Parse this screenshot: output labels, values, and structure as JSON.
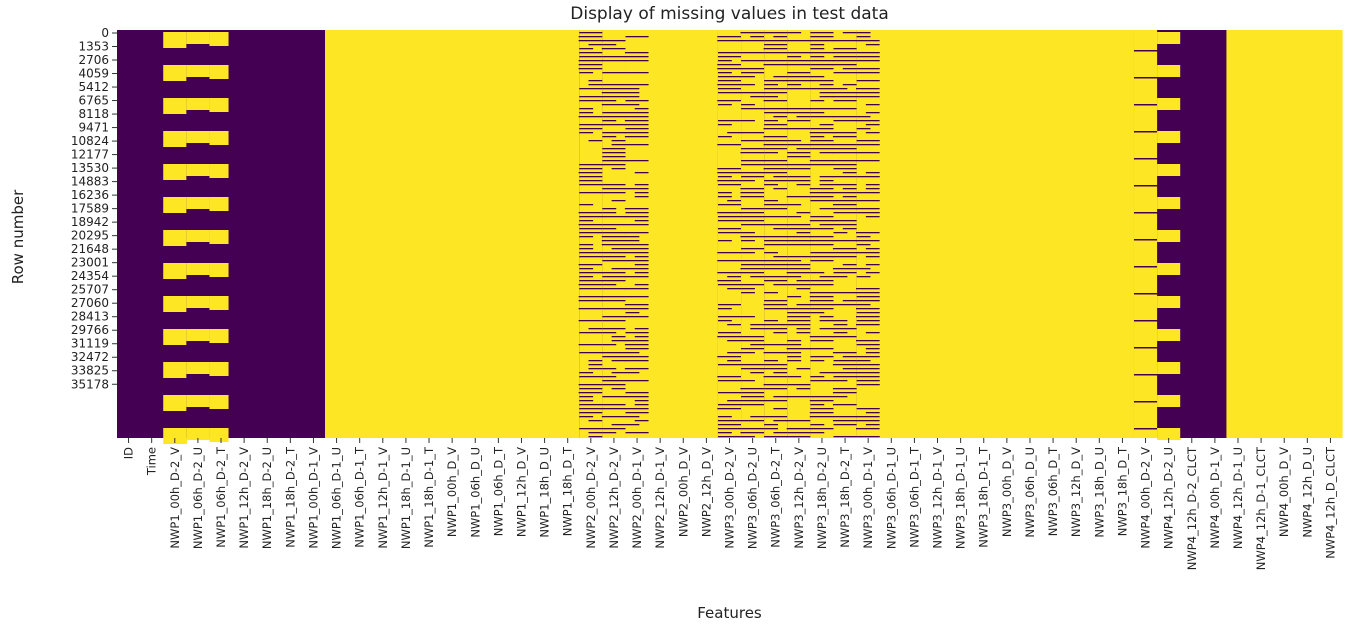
{
  "chart_data": {
    "type": "heatmap",
    "title": "Display of missing values in test data",
    "xlabel": "Features",
    "ylabel": "Row number",
    "colors": {
      "missing": "#fde725",
      "present": "#440154"
    },
    "value_meaning": {
      "1": "missing",
      "0": "present"
    },
    "y_tick_labels": [
      "0",
      "1353",
      "2706",
      "4059",
      "5412",
      "6765",
      "8118",
      "9471",
      "10824",
      "12177",
      "13530",
      "14883",
      "16236",
      "17589",
      "18942",
      "20295",
      "21648",
      "23001",
      "24354",
      "25707",
      "27060",
      "28413",
      "29766",
      "31119",
      "32472",
      "33825",
      "35178"
    ],
    "x_tick_labels": [
      "ID",
      "Time",
      "NWP1_00h_D-2_V",
      "NWP1_06h_D-2_U",
      "NWP1_06h_D-2_T",
      "NWP1_12h_D-2_V",
      "NWP1_18h_D-2_U",
      "NWP1_18h_D-2_T",
      "NWP1_00h_D-1_V",
      "NWP1_06h_D-1_U",
      "NWP1_06h_D-1_T",
      "NWP1_12h_D-1_V",
      "NWP1_18h_D-1_U",
      "NWP1_18h_D-1_T",
      "NWP1_00h_D_V",
      "NWP1_06h_D_U",
      "NWP1_06h_D_T",
      "NWP1_12h_D_V",
      "NWP1_18h_D_U",
      "NWP1_18h_D_T",
      "NWP2_00h_D-2_V",
      "NWP2_12h_D-2_V",
      "NWP2_00h_D-1_V",
      "NWP2_12h_D-1_V",
      "NWP2_00h_D_V",
      "NWP2_12h_D_V",
      "NWP3_00h_D-2_V",
      "NWP3_06h_D-2_U",
      "NWP3_06h_D-2_T",
      "NWP3_12h_D-2_V",
      "NWP3_18h_D-2_U",
      "NWP3_18h_D-2_T",
      "NWP3_00h_D-1_V",
      "NWP3_06h_D-1_U",
      "NWP3_06h_D-1_T",
      "NWP3_12h_D-1_V",
      "NWP3_18h_D-1_U",
      "NWP3_18h_D-1_T",
      "NWP3_00h_D_V",
      "NWP3_06h_D_U",
      "NWP3_06h_D_T",
      "NWP3_12h_D_V",
      "NWP3_18h_D_U",
      "NWP3_18h_D_T",
      "NWP4_00h_D-2_V",
      "NWP4_12h_D-2_U",
      "NWP4_12h_D-2_CLCT",
      "NWP4_00h_D-1_V",
      "NWP4_12h_D-1_U",
      "NWP4_12h_D-1_CLCT",
      "NWP4_00h_D_V",
      "NWP4_12h_D_U",
      "NWP4_12h_D_CLCT"
    ],
    "columns": [
      {
        "name": "ID",
        "pattern": "present"
      },
      {
        "name": "Time",
        "pattern": "present"
      },
      {
        "name": "NWP1_00h_D-2_V",
        "pattern": "periodic_blocks"
      },
      {
        "name": "NWP1_06h_D-2_U",
        "pattern": "periodic_blocks"
      },
      {
        "name": "NWP1_06h_D-2_T",
        "pattern": "periodic_blocks"
      },
      {
        "name": "NWP1_12h_D-2_V",
        "pattern": "present"
      },
      {
        "name": "NWP1_18h_D-2_U",
        "pattern": "present"
      },
      {
        "name": "NWP1_18h_D-2_T",
        "pattern": "present"
      },
      {
        "name": "NWP1_00h_D-1_V",
        "pattern": "present"
      },
      {
        "name": "NWP1_06h_D-1_U",
        "pattern": "missing"
      },
      {
        "name": "NWP1_06h_D-1_T",
        "pattern": "missing"
      },
      {
        "name": "NWP1_12h_D-1_V",
        "pattern": "missing"
      },
      {
        "name": "NWP1_18h_D-1_U",
        "pattern": "missing"
      },
      {
        "name": "NWP1_18h_D-1_T",
        "pattern": "missing"
      },
      {
        "name": "NWP1_00h_D_V",
        "pattern": "missing"
      },
      {
        "name": "NWP1_06h_D_U",
        "pattern": "missing"
      },
      {
        "name": "NWP1_06h_D_T",
        "pattern": "missing"
      },
      {
        "name": "NWP1_12h_D_V",
        "pattern": "missing"
      },
      {
        "name": "NWP1_18h_D_U",
        "pattern": "missing"
      },
      {
        "name": "NWP1_18h_D_T",
        "pattern": "missing"
      },
      {
        "name": "NWP2_00h_D-2_V",
        "pattern": "striped"
      },
      {
        "name": "NWP2_12h_D-2_V",
        "pattern": "striped"
      },
      {
        "name": "NWP2_00h_D-1_V",
        "pattern": "striped"
      },
      {
        "name": "NWP2_12h_D-1_V",
        "pattern": "missing"
      },
      {
        "name": "NWP2_00h_D_V",
        "pattern": "missing"
      },
      {
        "name": "NWP2_12h_D_V",
        "pattern": "missing"
      },
      {
        "name": "NWP3_00h_D-2_V",
        "pattern": "striped"
      },
      {
        "name": "NWP3_06h_D-2_U",
        "pattern": "striped"
      },
      {
        "name": "NWP3_06h_D-2_T",
        "pattern": "striped"
      },
      {
        "name": "NWP3_12h_D-2_V",
        "pattern": "striped"
      },
      {
        "name": "NWP3_18h_D-2_U",
        "pattern": "striped"
      },
      {
        "name": "NWP3_18h_D-2_T",
        "pattern": "striped"
      },
      {
        "name": "NWP3_00h_D-1_V",
        "pattern": "striped"
      },
      {
        "name": "NWP3_06h_D-1_U",
        "pattern": "missing"
      },
      {
        "name": "NWP3_06h_D-1_T",
        "pattern": "missing"
      },
      {
        "name": "NWP3_12h_D-1_V",
        "pattern": "missing"
      },
      {
        "name": "NWP3_18h_D-1_U",
        "pattern": "missing"
      },
      {
        "name": "NWP3_18h_D-1_T",
        "pattern": "missing"
      },
      {
        "name": "NWP3_00h_D_V",
        "pattern": "missing"
      },
      {
        "name": "NWP3_06h_D_U",
        "pattern": "missing"
      },
      {
        "name": "NWP3_06h_D_T",
        "pattern": "missing"
      },
      {
        "name": "NWP3_12h_D_V",
        "pattern": "missing"
      },
      {
        "name": "NWP3_18h_D_U",
        "pattern": "missing"
      },
      {
        "name": "NWP3_18h_D_T",
        "pattern": "missing"
      },
      {
        "name": "NWP4_00h_D-2_V",
        "pattern": "sparse_lines"
      },
      {
        "name": "NWP4_12h_D-2_U",
        "pattern": "periodic_blocks"
      },
      {
        "name": "NWP4_12h_D-2_CLCT",
        "pattern": "present"
      },
      {
        "name": "NWP4_00h_D-1_V",
        "pattern": "present"
      },
      {
        "name": "NWP4_12h_D-1_U",
        "pattern": "missing"
      },
      {
        "name": "NWP4_12h_D-1_CLCT",
        "pattern": "missing"
      },
      {
        "name": "NWP4_00h_D_V",
        "pattern": "missing"
      },
      {
        "name": "NWP4_12h_D_U",
        "pattern": "missing"
      },
      {
        "name": "NWP4_12h_D_CLCT",
        "pattern": "missing"
      }
    ],
    "colorbar": false,
    "grid": false
  }
}
